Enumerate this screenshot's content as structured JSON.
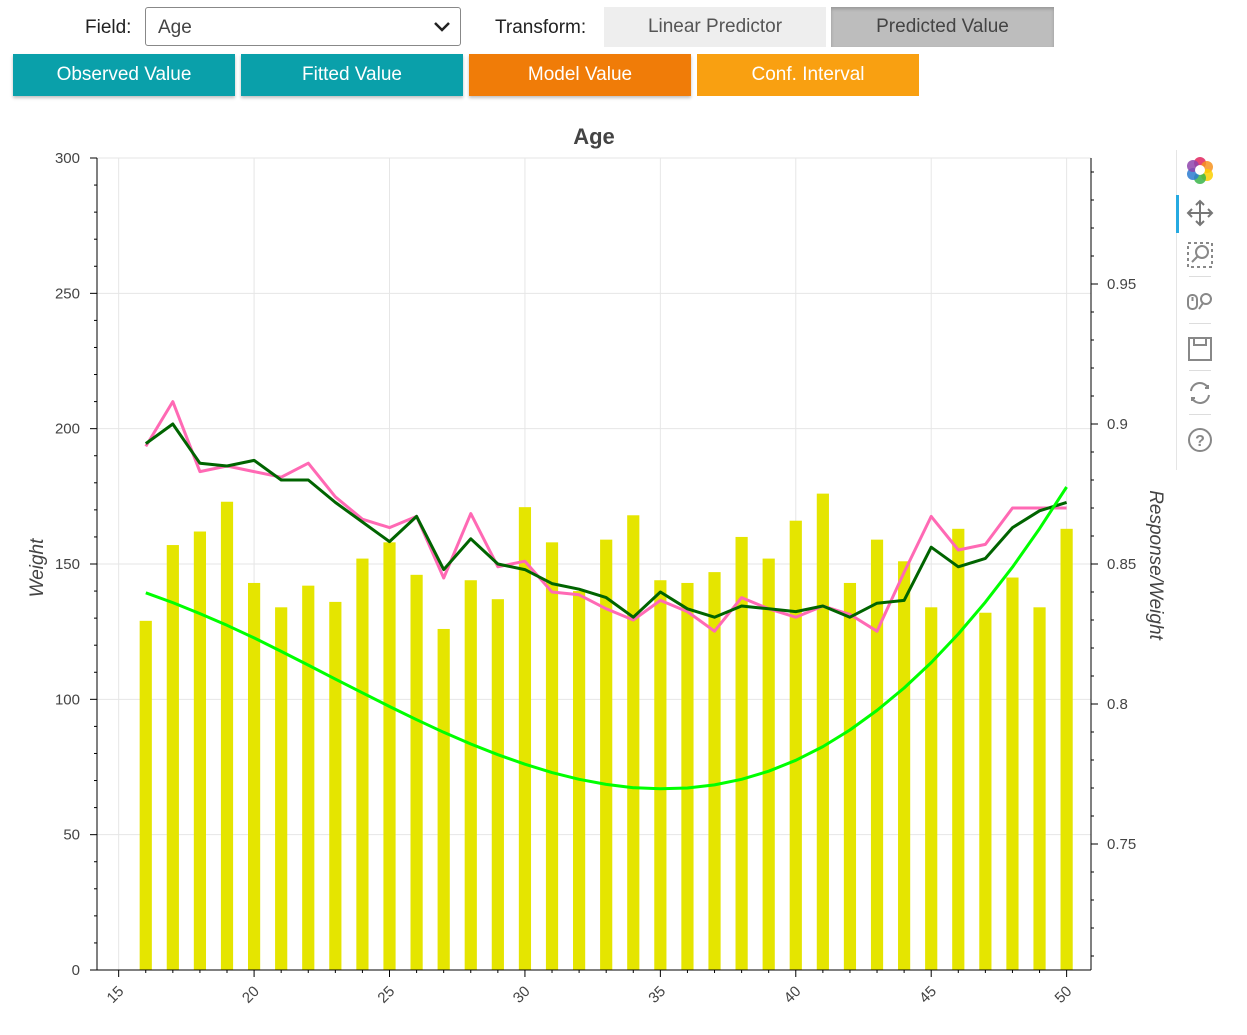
{
  "controls": {
    "field_label": "Field:",
    "field_value": "Age",
    "transform_label": "Transform:",
    "transform_buttons": [
      "Linear Predictor",
      "Predicted Value"
    ],
    "series_buttons": [
      "Observed Value",
      "Fitted Value",
      "Model Value",
      "Conf. Interval"
    ]
  },
  "colors": {
    "observed_button": "#0aa0aa",
    "fitted_button": "#0aa0aa",
    "model_button": "#f07c08",
    "conf_button": "#f9a011",
    "bars": "#e5e500",
    "observed_line": "#ff69b4",
    "fitted_line": "#006400",
    "model_line": "#00ff00"
  },
  "toolbar": [
    "bokeh-logo-icon",
    "pan-icon",
    "box-zoom-icon",
    "wheel-zoom-icon",
    "save-icon",
    "reset-icon",
    "help-icon"
  ],
  "chart_data": {
    "type": "bar+line",
    "title": "Age",
    "xlabel": "",
    "ylabel": "Weight",
    "y2label": "Response/Weight",
    "xlim": [
      14.2,
      50.9
    ],
    "ylim": [
      0,
      300
    ],
    "y2lim": [
      0.705,
      0.995
    ],
    "x_ticks": [
      15,
      20,
      25,
      30,
      35,
      40,
      45,
      50
    ],
    "y_ticks": [
      0,
      50,
      100,
      150,
      200,
      250,
      300
    ],
    "y2_ticks": [
      0.75,
      0.8,
      0.85,
      0.9,
      0.95
    ],
    "y2_tick_labels": [
      "0.75",
      "0.8",
      "0.85",
      "0.9",
      "0.95"
    ],
    "x": [
      16,
      17,
      18,
      19,
      20,
      21,
      22,
      23,
      24,
      25,
      26,
      27,
      28,
      29,
      30,
      31,
      32,
      33,
      34,
      35,
      36,
      37,
      38,
      39,
      40,
      41,
      42,
      43,
      44,
      45,
      46,
      47,
      48,
      49,
      50
    ],
    "bars": {
      "name": "Weight",
      "values": [
        129,
        157,
        162,
        173,
        143,
        134,
        142,
        136,
        152,
        158,
        146,
        126,
        144,
        137,
        171,
        158,
        140,
        159,
        168,
        144,
        143,
        147,
        160,
        152,
        166,
        176,
        143,
        159,
        151,
        134,
        163,
        132,
        145,
        134,
        163
      ]
    },
    "series": [
      {
        "name": "Observed Value",
        "axis": "right",
        "values": [
          0.892,
          0.908,
          0.883,
          0.885,
          0.883,
          0.881,
          0.886,
          0.874,
          0.866,
          0.863,
          0.867,
          0.845,
          0.868,
          0.849,
          0.851,
          0.84,
          0.839,
          0.834,
          0.83,
          0.837,
          0.833,
          0.826,
          0.838,
          0.834,
          0.831,
          0.835,
          0.832,
          0.826,
          0.847,
          0.867,
          0.855,
          0.857,
          0.87,
          0.87,
          0.87
        ]
      },
      {
        "name": "Fitted Value",
        "axis": "right",
        "values": [
          0.893,
          0.9,
          0.886,
          0.885,
          0.887,
          0.88,
          0.88,
          0.872,
          0.865,
          0.858,
          0.867,
          0.848,
          0.859,
          0.85,
          0.848,
          0.843,
          0.841,
          0.838,
          0.831,
          0.84,
          0.834,
          0.831,
          0.835,
          0.834,
          0.833,
          0.835,
          0.831,
          0.836,
          0.837,
          0.856,
          0.849,
          0.852,
          0.863,
          0.869,
          0.872
        ]
      },
      {
        "name": "Model Value",
        "axis": "right",
        "values": [
          0.8397,
          0.8362,
          0.8323,
          0.8281,
          0.8236,
          0.8188,
          0.8139,
          0.8089,
          0.804,
          0.7991,
          0.7944,
          0.7899,
          0.7857,
          0.7819,
          0.7785,
          0.7755,
          0.7731,
          0.7713,
          0.7701,
          0.7697,
          0.77,
          0.7711,
          0.7731,
          0.776,
          0.7799,
          0.7848,
          0.7907,
          0.7977,
          0.8057,
          0.8148,
          0.825,
          0.8364,
          0.8489,
          0.8626,
          0.8775
        ]
      }
    ]
  }
}
